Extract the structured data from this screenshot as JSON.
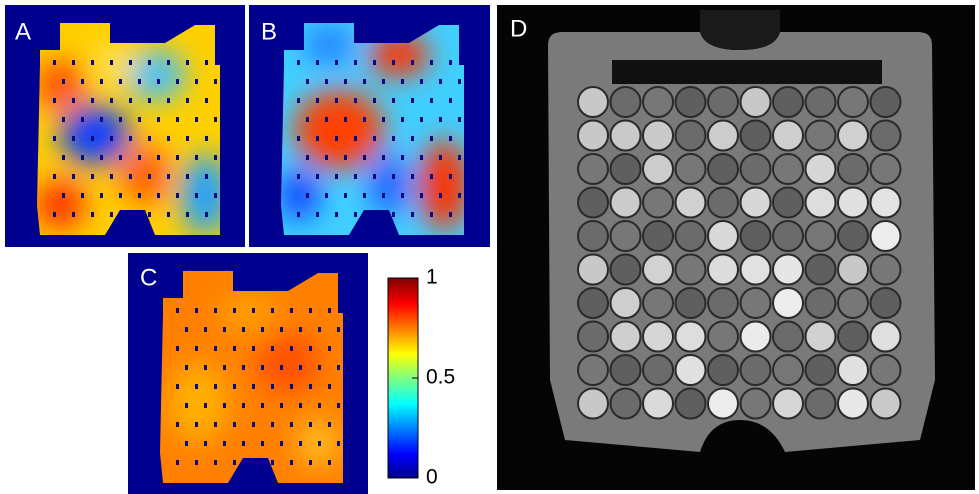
{
  "panels": [
    {
      "label": "A"
    },
    {
      "label": "B"
    },
    {
      "label": "C"
    },
    {
      "label": "D"
    }
  ],
  "colorbar": {
    "lim": [
      0,
      1
    ],
    "ticks": [
      0,
      0.5,
      1
    ]
  }
}
